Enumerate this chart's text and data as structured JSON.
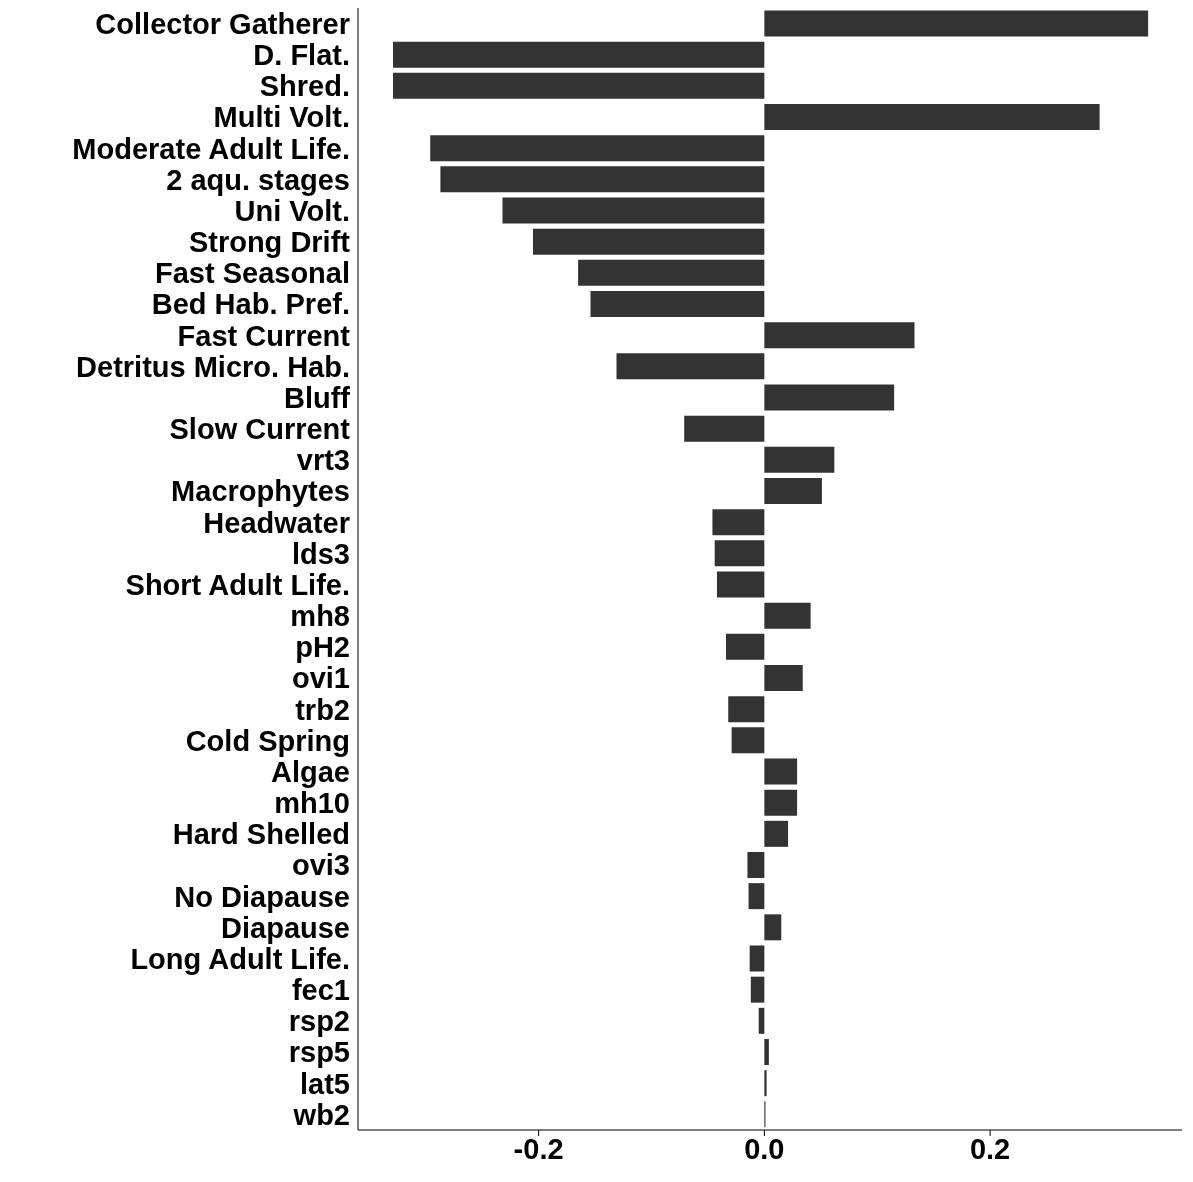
{
  "chart_data": {
    "type": "bar",
    "orientation": "horizontal",
    "color": "#333333",
    "categories": [
      "Collector Gatherer",
      "D. Flat.",
      "Shred.",
      "Multi Volt.",
      "Moderate Adult Life.",
      "2 aqu. stages",
      "Uni Volt.",
      "Strong Drift",
      "Fast Seasonal",
      "Bed Hab. Pref.",
      "Fast Current",
      "Detritus Micro. Hab.",
      "Bluff",
      "Slow Current",
      "vrt3",
      "Macrophytes",
      "Headwater",
      "lds3",
      "Short Adult Life.",
      "mh8",
      "pH2",
      "ovi1",
      "trb2",
      "Cold Spring",
      "Algae",
      "mh10",
      "Hard Shelled",
      "ovi3",
      "No Diapause",
      "Diapause",
      "Long Adult Life.",
      "fec1",
      "rsp2",
      "rsp5",
      "lat5",
      "wb2"
    ],
    "values": [
      0.34,
      -0.329,
      -0.329,
      0.297,
      -0.296,
      -0.287,
      -0.232,
      -0.205,
      -0.165,
      -0.154,
      0.133,
      -0.131,
      0.115,
      -0.071,
      0.062,
      0.051,
      -0.046,
      -0.044,
      -0.042,
      0.041,
      -0.034,
      0.034,
      -0.032,
      -0.029,
      0.029,
      0.029,
      0.021,
      -0.015,
      -0.014,
      0.015,
      -0.013,
      -0.012,
      -0.005,
      0.004,
      0.002,
      0.001
    ],
    "xlim": [
      -0.36,
      0.37
    ],
    "xticks": [
      {
        "value": -0.2,
        "label": "-0.2"
      },
      {
        "value": 0,
        "label": "0.0"
      },
      {
        "value": 0.2,
        "label": "0.2"
      }
    ],
    "grid": false
  }
}
